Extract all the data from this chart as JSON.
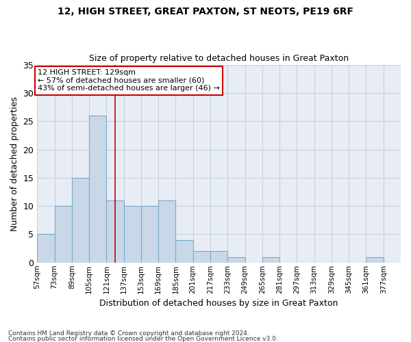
{
  "title1": "12, HIGH STREET, GREAT PAXTON, ST NEOTS, PE19 6RF",
  "title2": "Size of property relative to detached houses in Great Paxton",
  "xlabel": "Distribution of detached houses by size in Great Paxton",
  "ylabel": "Number of detached properties",
  "footnote1": "Contains HM Land Registry data © Crown copyright and database right 2024.",
  "footnote2": "Contains public sector information licensed under the Open Government Licence v3.0.",
  "bin_edges": [
    57,
    73,
    89,
    105,
    121,
    137,
    153,
    169,
    185,
    201,
    217,
    233,
    249,
    265,
    281,
    297,
    313,
    329,
    345,
    361,
    377,
    393
  ],
  "values": [
    5,
    10,
    15,
    26,
    11,
    10,
    10,
    11,
    4,
    2,
    2,
    1,
    0,
    1,
    0,
    0,
    0,
    0,
    0,
    1,
    0
  ],
  "bar_color": "#c8d8e8",
  "bar_edge_color": "#7aaaca",
  "grid_color": "#c5cfe0",
  "marker_value": 129,
  "marker_color": "#cc0000",
  "annotation_title": "12 HIGH STREET: 129sqm",
  "annotation_line1": "← 57% of detached houses are smaller (60)",
  "annotation_line2": "43% of semi-detached houses are larger (46) →",
  "annotation_box_color": "#ffffff",
  "annotation_box_edge": "#cc0000",
  "ylim": [
    0,
    35
  ],
  "yticks": [
    0,
    5,
    10,
    15,
    20,
    25,
    30,
    35
  ],
  "bg_color": "#e8edf5"
}
